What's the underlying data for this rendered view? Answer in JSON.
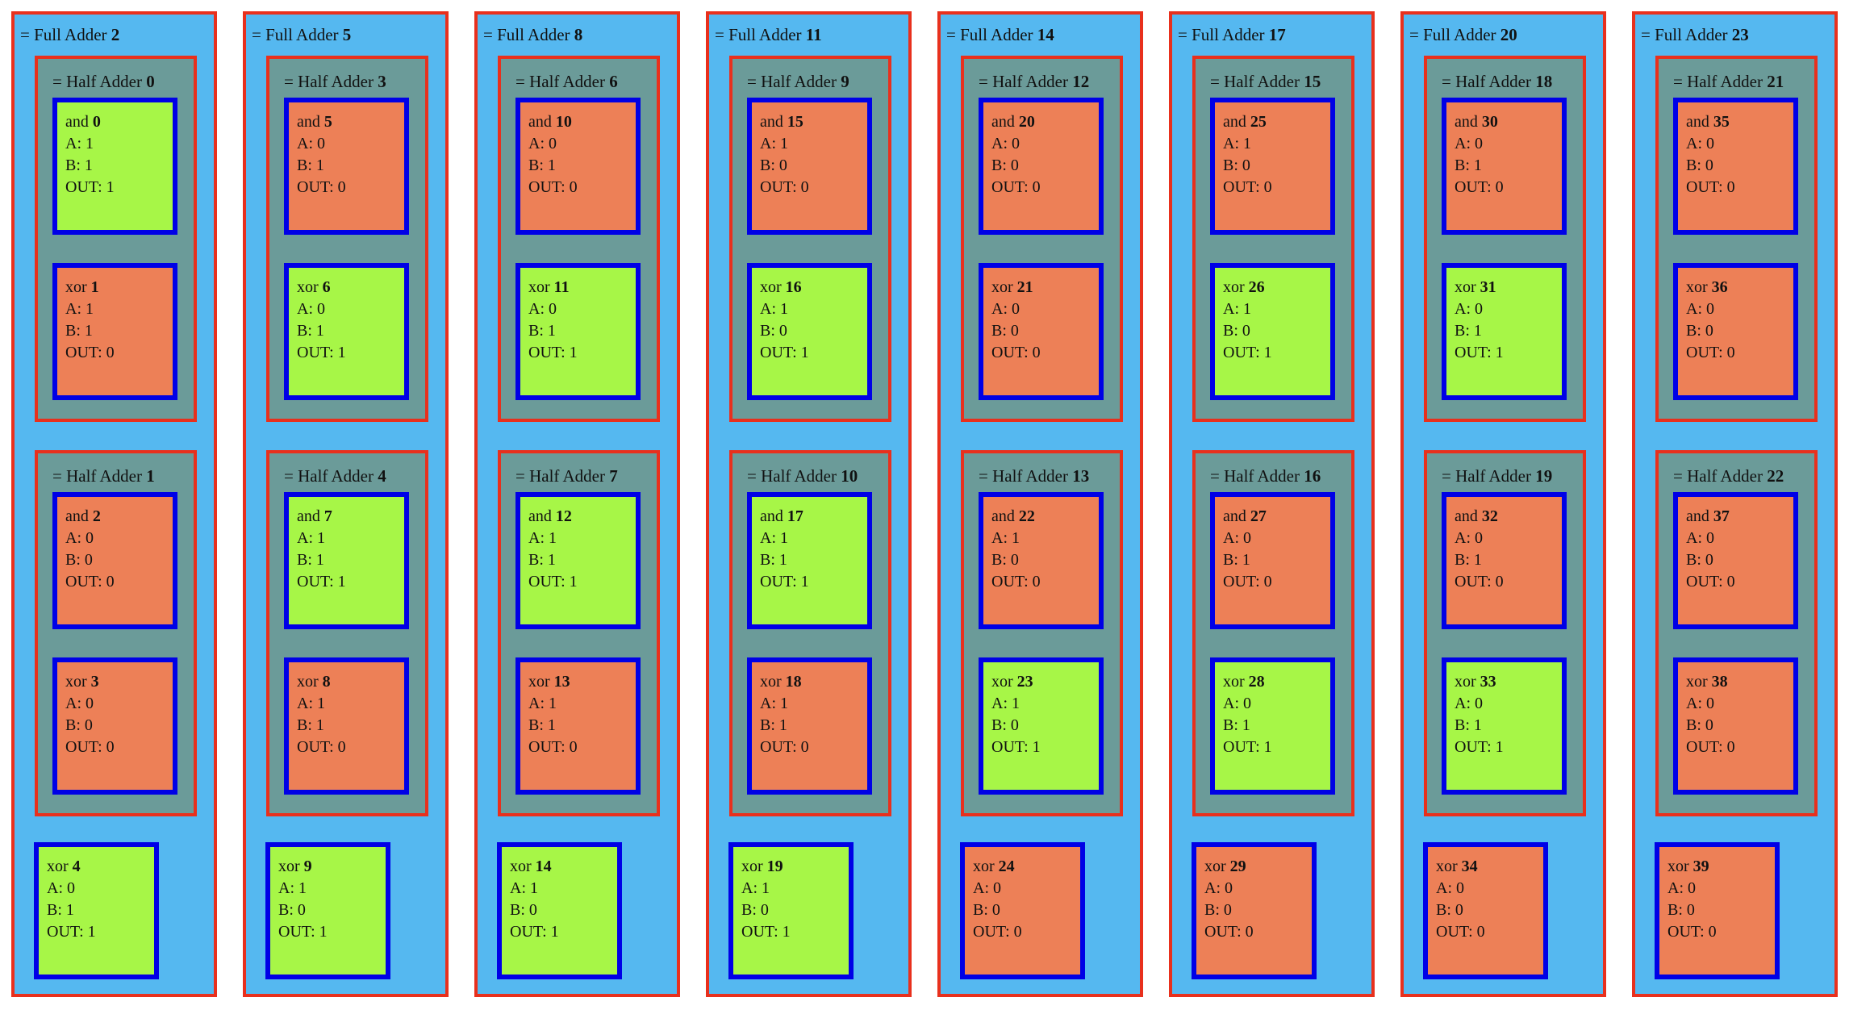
{
  "colors": {
    "page_bg": "#ffffff",
    "full_adder_bg": "#55b8f0",
    "half_adder_bg": "#6b9b99",
    "gate_on_bg": "#a7f647",
    "gate_off_bg": "#ed8057",
    "adder_border": "#e8301d",
    "gate_border": "#0000e6"
  },
  "labels": {
    "full_adder_prefix": "= Full Adder",
    "half_adder_prefix": "= Half Adder",
    "a_prefix": "A:",
    "b_prefix": "B:",
    "out_prefix": "OUT:"
  },
  "full_adders": [
    {
      "id": 2,
      "half_adders": [
        {
          "id": 0,
          "gates": [
            {
              "type": "and",
              "id": 0,
              "a": 1,
              "b": 1,
              "out": 1
            },
            {
              "type": "xor",
              "id": 1,
              "a": 1,
              "b": 1,
              "out": 0
            }
          ]
        },
        {
          "id": 1,
          "gates": [
            {
              "type": "and",
              "id": 2,
              "a": 0,
              "b": 0,
              "out": 0
            },
            {
              "type": "xor",
              "id": 3,
              "a": 0,
              "b": 0,
              "out": 0
            }
          ]
        }
      ],
      "carry_xor": {
        "type": "xor",
        "id": 4,
        "a": 0,
        "b": 1,
        "out": 1
      }
    },
    {
      "id": 5,
      "half_adders": [
        {
          "id": 3,
          "gates": [
            {
              "type": "and",
              "id": 5,
              "a": 0,
              "b": 1,
              "out": 0
            },
            {
              "type": "xor",
              "id": 6,
              "a": 0,
              "b": 1,
              "out": 1
            }
          ]
        },
        {
          "id": 4,
          "gates": [
            {
              "type": "and",
              "id": 7,
              "a": 1,
              "b": 1,
              "out": 1
            },
            {
              "type": "xor",
              "id": 8,
              "a": 1,
              "b": 1,
              "out": 0
            }
          ]
        }
      ],
      "carry_xor": {
        "type": "xor",
        "id": 9,
        "a": 1,
        "b": 0,
        "out": 1
      }
    },
    {
      "id": 8,
      "half_adders": [
        {
          "id": 6,
          "gates": [
            {
              "type": "and",
              "id": 10,
              "a": 0,
              "b": 1,
              "out": 0
            },
            {
              "type": "xor",
              "id": 11,
              "a": 0,
              "b": 1,
              "out": 1
            }
          ]
        },
        {
          "id": 7,
          "gates": [
            {
              "type": "and",
              "id": 12,
              "a": 1,
              "b": 1,
              "out": 1
            },
            {
              "type": "xor",
              "id": 13,
              "a": 1,
              "b": 1,
              "out": 0
            }
          ]
        }
      ],
      "carry_xor": {
        "type": "xor",
        "id": 14,
        "a": 1,
        "b": 0,
        "out": 1
      }
    },
    {
      "id": 11,
      "half_adders": [
        {
          "id": 9,
          "gates": [
            {
              "type": "and",
              "id": 15,
              "a": 1,
              "b": 0,
              "out": 0
            },
            {
              "type": "xor",
              "id": 16,
              "a": 1,
              "b": 0,
              "out": 1
            }
          ]
        },
        {
          "id": 10,
          "gates": [
            {
              "type": "and",
              "id": 17,
              "a": 1,
              "b": 1,
              "out": 1
            },
            {
              "type": "xor",
              "id": 18,
              "a": 1,
              "b": 1,
              "out": 0
            }
          ]
        }
      ],
      "carry_xor": {
        "type": "xor",
        "id": 19,
        "a": 1,
        "b": 0,
        "out": 1
      }
    },
    {
      "id": 14,
      "half_adders": [
        {
          "id": 12,
          "gates": [
            {
              "type": "and",
              "id": 20,
              "a": 0,
              "b": 0,
              "out": 0
            },
            {
              "type": "xor",
              "id": 21,
              "a": 0,
              "b": 0,
              "out": 0
            }
          ]
        },
        {
          "id": 13,
          "gates": [
            {
              "type": "and",
              "id": 22,
              "a": 1,
              "b": 0,
              "out": 0
            },
            {
              "type": "xor",
              "id": 23,
              "a": 1,
              "b": 0,
              "out": 1
            }
          ]
        }
      ],
      "carry_xor": {
        "type": "xor",
        "id": 24,
        "a": 0,
        "b": 0,
        "out": 0
      }
    },
    {
      "id": 17,
      "half_adders": [
        {
          "id": 15,
          "gates": [
            {
              "type": "and",
              "id": 25,
              "a": 1,
              "b": 0,
              "out": 0
            },
            {
              "type": "xor",
              "id": 26,
              "a": 1,
              "b": 0,
              "out": 1
            }
          ]
        },
        {
          "id": 16,
          "gates": [
            {
              "type": "and",
              "id": 27,
              "a": 0,
              "b": 1,
              "out": 0
            },
            {
              "type": "xor",
              "id": 28,
              "a": 0,
              "b": 1,
              "out": 1
            }
          ]
        }
      ],
      "carry_xor": {
        "type": "xor",
        "id": 29,
        "a": 0,
        "b": 0,
        "out": 0
      }
    },
    {
      "id": 20,
      "half_adders": [
        {
          "id": 18,
          "gates": [
            {
              "type": "and",
              "id": 30,
              "a": 0,
              "b": 1,
              "out": 0
            },
            {
              "type": "xor",
              "id": 31,
              "a": 0,
              "b": 1,
              "out": 1
            }
          ]
        },
        {
          "id": 19,
          "gates": [
            {
              "type": "and",
              "id": 32,
              "a": 0,
              "b": 1,
              "out": 0
            },
            {
              "type": "xor",
              "id": 33,
              "a": 0,
              "b": 1,
              "out": 1
            }
          ]
        }
      ],
      "carry_xor": {
        "type": "xor",
        "id": 34,
        "a": 0,
        "b": 0,
        "out": 0
      }
    },
    {
      "id": 23,
      "half_adders": [
        {
          "id": 21,
          "gates": [
            {
              "type": "and",
              "id": 35,
              "a": 0,
              "b": 0,
              "out": 0
            },
            {
              "type": "xor",
              "id": 36,
              "a": 0,
              "b": 0,
              "out": 0
            }
          ]
        },
        {
          "id": 22,
          "gates": [
            {
              "type": "and",
              "id": 37,
              "a": 0,
              "b": 0,
              "out": 0
            },
            {
              "type": "xor",
              "id": 38,
              "a": 0,
              "b": 0,
              "out": 0
            }
          ]
        }
      ],
      "carry_xor": {
        "type": "xor",
        "id": 39,
        "a": 0,
        "b": 0,
        "out": 0
      }
    }
  ]
}
